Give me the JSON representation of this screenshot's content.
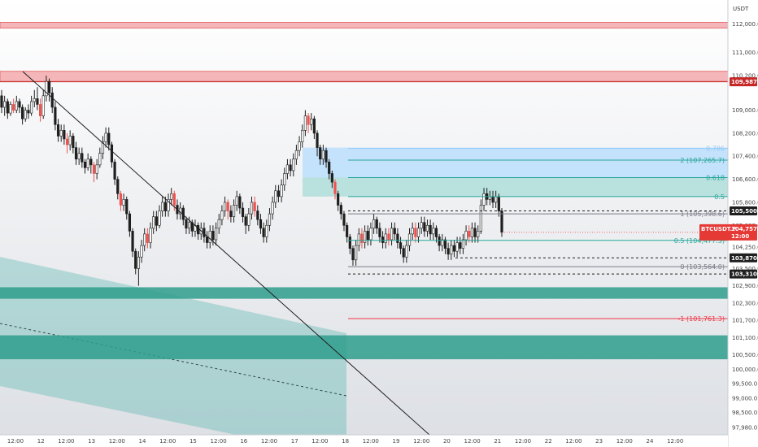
{
  "chart_data": {
    "type": "candlestick",
    "symbol": "BTCUSDT.P",
    "currency": "USDT",
    "ylim": [
      97980,
      112600
    ],
    "y_ticks": [
      "112,000.0",
      "111,000.0",
      "110,200.0",
      "109,000.0",
      "108,200.0",
      "107,400.0",
      "106,600.0",
      "105,800.0",
      "105,000.0",
      "104,250.0",
      "103,500.0",
      "102,900.0",
      "102,300.0",
      "101,700.0",
      "101,100.0",
      "100,500.0",
      "100,000.0",
      "99,500.0",
      "99,000.0",
      "98,500.0",
      "97,980.0"
    ],
    "y_tick_values": [
      112000,
      111000,
      110200,
      109000,
      108200,
      107400,
      106600,
      105800,
      105000,
      104250,
      103500,
      102900,
      102300,
      101700,
      101100,
      100500,
      100000,
      99500,
      99000,
      98500,
      97980
    ],
    "x_ticks": [
      "12:00",
      "12",
      "12:00",
      "13",
      "12:00",
      "14",
      "12:00",
      "15",
      "12:00",
      "16",
      "12:00",
      "17",
      "12:00",
      "18",
      "12:00",
      "19",
      "12:00",
      "20",
      "12:00",
      "21",
      "12:00",
      "22",
      "12:00",
      "23",
      "12:00",
      "24",
      "12:00"
    ],
    "price_badges": [
      {
        "label": "109,987.2",
        "value": 109987.2,
        "color": "#c62828"
      },
      {
        "label": "105,500.1",
        "value": 105500.1,
        "color": "#1f1f1f"
      },
      {
        "label": "103,870.3",
        "value": 103870.3,
        "color": "#1f1f1f"
      },
      {
        "label": "103,310.2",
        "value": 103310.2,
        "color": "#1f1f1f"
      }
    ],
    "current_price": {
      "symbol": "BTCUSDT.P",
      "price": "104,757.9",
      "countdown": "12:00",
      "value": 104757.9,
      "color": "#e53935"
    },
    "fib_levels": [
      {
        "label": "0.786",
        "value": 107670,
        "color": "#90caf9"
      },
      {
        "label": "2 (107,265.7)",
        "value": 107265.7,
        "color": "#26a69a"
      },
      {
        "label": "0.618",
        "value": 106660,
        "color": "#26a69a"
      },
      {
        "label": "0.5",
        "value": 106000,
        "color": "#26a69a"
      },
      {
        "label": "1 (105,398.6)",
        "value": 105398.6,
        "color": "#787b86"
      },
      {
        "label": "0.5 (104,477.3)",
        "value": 104477.3,
        "color": "#26a69a"
      },
      {
        "label": "0 (103,564.0)",
        "value": 103564,
        "color": "#787b86"
      },
      {
        "label": "-1 (101,761.3)",
        "value": 101761.3,
        "color": "#f23645"
      }
    ],
    "candles": [
      [
        109500,
        109100,
        109700,
        108900
      ],
      [
        109100,
        109300,
        109500,
        108800
      ],
      [
        109300,
        108900,
        109400,
        108700
      ],
      [
        108900,
        109200,
        109300,
        108800
      ],
      [
        109200,
        109000,
        109400,
        108900
      ],
      [
        109000,
        109300,
        109500,
        108900
      ],
      [
        109300,
        109100,
        109400,
        108900
      ],
      [
        109100,
        108700,
        109200,
        108500
      ],
      [
        108700,
        109000,
        109100,
        108600
      ],
      [
        109000,
        108900,
        109200,
        108700
      ],
      [
        108900,
        109300,
        109500,
        108800
      ],
      [
        109300,
        109400,
        109700,
        109100
      ],
      [
        109400,
        109200,
        109800,
        109000
      ],
      [
        109200,
        108800,
        109400,
        108600
      ],
      [
        108800,
        109500,
        109700,
        108700
      ],
      [
        109500,
        110000,
        110200,
        109300
      ],
      [
        110000,
        109600,
        110100,
        109300
      ],
      [
        109600,
        109100,
        109800,
        108900
      ],
      [
        109100,
        108500,
        109300,
        108300
      ],
      [
        108500,
        108100,
        108700,
        107900
      ],
      [
        108100,
        108300,
        108500,
        107900
      ],
      [
        108300,
        108000,
        108500,
        107800
      ],
      [
        108000,
        107800,
        108200,
        107500
      ],
      [
        107800,
        108100,
        108300,
        107600
      ],
      [
        108100,
        107700,
        108200,
        107500
      ],
      [
        107700,
        107300,
        107900,
        107100
      ],
      [
        107300,
        107500,
        107700,
        107100
      ],
      [
        107500,
        107200,
        107700,
        107000
      ],
      [
        107200,
        107000,
        107300,
        106800
      ],
      [
        107000,
        107300,
        107500,
        106900
      ],
      [
        107300,
        107100,
        107400,
        106800
      ],
      [
        107100,
        106800,
        107200,
        106500
      ],
      [
        106800,
        107100,
        107300,
        106600
      ],
      [
        107100,
        107500,
        107700,
        107000
      ],
      [
        107500,
        107900,
        108100,
        107300
      ],
      [
        107900,
        108200,
        108400,
        107700
      ],
      [
        108200,
        107800,
        108400,
        107600
      ],
      [
        107800,
        107200,
        107900,
        107000
      ],
      [
        107200,
        106600,
        107300,
        106400
      ],
      [
        106600,
        106100,
        106700,
        105900
      ],
      [
        106100,
        105700,
        106200,
        105500
      ],
      [
        105700,
        105900,
        106100,
        105500
      ],
      [
        105900,
        105400,
        106000,
        105200
      ],
      [
        105400,
        104800,
        105500,
        104600
      ],
      [
        104800,
        104100,
        104900,
        103900
      ],
      [
        104100,
        103500,
        104200,
        103300
      ],
      [
        103500,
        103900,
        104100,
        102900
      ],
      [
        103900,
        104300,
        104500,
        103700
      ],
      [
        104300,
        104700,
        104900,
        104100
      ],
      [
        104700,
        104400,
        104900,
        104200
      ],
      [
        104400,
        104900,
        105100,
        104200
      ],
      [
        104900,
        105300,
        105500,
        104700
      ],
      [
        105300,
        105000,
        105500,
        104800
      ],
      [
        105000,
        105500,
        105700,
        104900
      ],
      [
        105500,
        105800,
        106000,
        105300
      ],
      [
        105800,
        105500,
        106000,
        105300
      ],
      [
        105500,
        105900,
        106100,
        105300
      ],
      [
        105900,
        106100,
        106300,
        105700
      ],
      [
        106100,
        105700,
        106200,
        105500
      ],
      [
        105700,
        105400,
        105900,
        105200
      ],
      [
        105400,
        105600,
        105800,
        105200
      ],
      [
        105600,
        105200,
        105700,
        105000
      ],
      [
        105200,
        104900,
        105300,
        104700
      ],
      [
        104900,
        105100,
        105300,
        104700
      ],
      [
        105100,
        104800,
        105200,
        104600
      ],
      [
        104800,
        105000,
        105200,
        104600
      ],
      [
        105000,
        104700,
        105100,
        104500
      ],
      [
        104700,
        104900,
        105100,
        104500
      ],
      [
        104900,
        104600,
        105100,
        104400
      ],
      [
        104600,
        104400,
        104800,
        104200
      ],
      [
        104400,
        104800,
        105000,
        104200
      ],
      [
        104800,
        104500,
        105000,
        104300
      ],
      [
        104500,
        104900,
        105100,
        104300
      ],
      [
        104900,
        105200,
        105400,
        104700
      ],
      [
        105200,
        105500,
        105700,
        105000
      ],
      [
        105500,
        105800,
        106000,
        105300
      ],
      [
        105800,
        105500,
        105900,
        105200
      ],
      [
        105500,
        105300,
        105700,
        105100
      ],
      [
        105300,
        105700,
        105900,
        105100
      ],
      [
        105700,
        106000,
        106200,
        105500
      ],
      [
        106000,
        105600,
        106100,
        105400
      ],
      [
        105600,
        105300,
        105800,
        105100
      ],
      [
        105300,
        105000,
        105400,
        104700
      ],
      [
        105000,
        105400,
        105600,
        104800
      ],
      [
        105400,
        105800,
        106000,
        105200
      ],
      [
        105800,
        105500,
        106000,
        105300
      ],
      [
        105500,
        105200,
        105700,
        105000
      ],
      [
        105200,
        104900,
        105400,
        104700
      ],
      [
        104900,
        104600,
        105100,
        104400
      ],
      [
        104600,
        105000,
        105200,
        104400
      ],
      [
        105000,
        105400,
        105600,
        104800
      ],
      [
        105400,
        105800,
        106000,
        105200
      ],
      [
        105800,
        106200,
        106400,
        105600
      ],
      [
        106200,
        106000,
        106400,
        105800
      ],
      [
        106000,
        106400,
        106600,
        105800
      ],
      [
        106400,
        106800,
        107000,
        106200
      ],
      [
        106800,
        107100,
        107300,
        106600
      ],
      [
        107100,
        106900,
        107300,
        106700
      ],
      [
        106900,
        107300,
        107500,
        106700
      ],
      [
        107300,
        107600,
        107800,
        107100
      ],
      [
        107600,
        107900,
        108100,
        107400
      ],
      [
        107900,
        108300,
        108500,
        107700
      ],
      [
        108300,
        108800,
        109000,
        108100
      ],
      [
        108800,
        108500,
        108900,
        108200
      ],
      [
        108500,
        108700,
        108900,
        108300
      ],
      [
        108700,
        108200,
        108800,
        108000
      ],
      [
        108200,
        107700,
        108300,
        107400
      ],
      [
        107700,
        107300,
        107800,
        107100
      ],
      [
        107300,
        107600,
        107800,
        107100
      ],
      [
        107600,
        107200,
        107700,
        107000
      ],
      [
        107200,
        106800,
        107300,
        106600
      ],
      [
        106800,
        106500,
        106900,
        106300
      ],
      [
        106500,
        106100,
        106600,
        105900
      ],
      [
        106100,
        105700,
        106200,
        105500
      ],
      [
        105700,
        105400,
        105800,
        105200
      ],
      [
        105400,
        105000,
        105500,
        104800
      ],
      [
        105000,
        104600,
        105100,
        104400
      ],
      [
        104600,
        104200,
        104700,
        104000
      ],
      [
        104200,
        103800,
        104300,
        103600
      ],
      [
        103800,
        104300,
        104500,
        103600
      ],
      [
        104300,
        104700,
        104900,
        104100
      ],
      [
        104700,
        104400,
        104900,
        104200
      ],
      [
        104400,
        104800,
        105000,
        104200
      ],
      [
        104800,
        104500,
        105000,
        104300
      ],
      [
        104500,
        104900,
        105100,
        104300
      ],
      [
        104900,
        105200,
        105400,
        104700
      ],
      [
        105200,
        104900,
        105300,
        104700
      ],
      [
        104900,
        104600,
        105100,
        104400
      ],
      [
        104600,
        104400,
        104800,
        104200
      ],
      [
        104400,
        104700,
        104900,
        104200
      ],
      [
        104700,
        104500,
        104900,
        104300
      ],
      [
        104500,
        104900,
        105100,
        104300
      ],
      [
        104900,
        104700,
        105100,
        104500
      ],
      [
        104700,
        104400,
        104900,
        104200
      ],
      [
        104400,
        104200,
        104600,
        104000
      ],
      [
        104200,
        103900,
        104300,
        103700
      ],
      [
        103900,
        104300,
        104500,
        103700
      ],
      [
        104300,
        104700,
        104900,
        104100
      ],
      [
        104700,
        104900,
        105100,
        104500
      ],
      [
        104900,
        104600,
        105100,
        104400
      ],
      [
        104600,
        104900,
        105100,
        104400
      ],
      [
        104900,
        105100,
        105300,
        104700
      ],
      [
        105100,
        104800,
        105300,
        104600
      ],
      [
        104800,
        105000,
        105200,
        104600
      ],
      [
        105000,
        104700,
        105200,
        104500
      ],
      [
        104700,
        104900,
        105100,
        104500
      ],
      [
        104900,
        104600,
        105000,
        104400
      ],
      [
        104600,
        104300,
        104700,
        104100
      ],
      [
        104300,
        104500,
        104700,
        104100
      ],
      [
        104500,
        104200,
        104600,
        104000
      ],
      [
        104200,
        104000,
        104400,
        103800
      ],
      [
        104000,
        104300,
        104500,
        103800
      ],
      [
        104300,
        104100,
        104500,
        103900
      ],
      [
        104100,
        104400,
        104600,
        103900
      ],
      [
        104400,
        104200,
        104600,
        104000
      ],
      [
        104200,
        104500,
        104700,
        104000
      ],
      [
        104500,
        104800,
        105000,
        104300
      ],
      [
        104800,
        104600,
        105000,
        104400
      ],
      [
        104600,
        104900,
        105100,
        104400
      ],
      [
        104900,
        104600,
        105100,
        104400
      ],
      [
        104600,
        104800,
        105000,
        104400
      ],
      [
        104800,
        105700,
        105900,
        104700
      ],
      [
        105700,
        106100,
        106300,
        105500
      ],
      [
        106100,
        105900,
        106300,
        105700
      ],
      [
        105900,
        106000,
        106200,
        105700
      ],
      [
        106000,
        105800,
        106200,
        105600
      ],
      [
        105800,
        106000,
        106200,
        105600
      ],
      [
        106000,
        105500,
        106100,
        105300
      ],
      [
        105500,
        104758,
        105600,
        104600
      ]
    ]
  },
  "axis": {
    "currency": "USDT"
  },
  "colors": {
    "up": "#26a69a",
    "down": "#ef5350",
    "candle_dark": "#1f1f1f"
  }
}
